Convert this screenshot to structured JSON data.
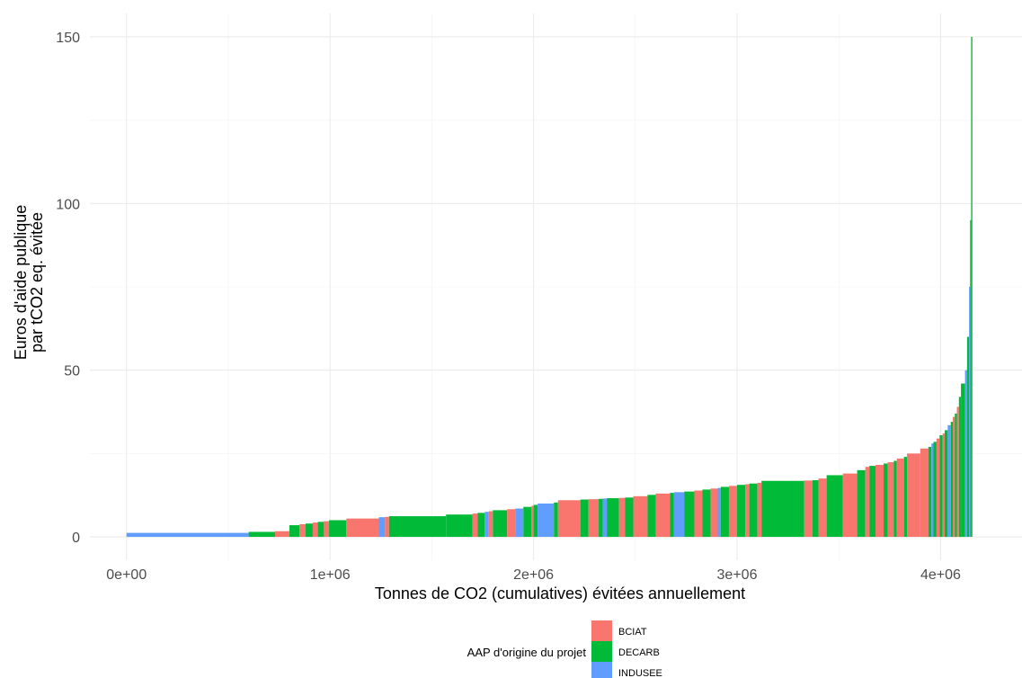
{
  "chart_data": {
    "type": "bar",
    "title": "",
    "xlabel": "Tonnes de CO2 (cumulatives) évitées annuellement",
    "ylabel_lines": [
      "Euros d'aide publique",
      "par tCO2 eq. évitée"
    ],
    "xlim": [
      -180000,
      4400000
    ],
    "ylim": [
      -7,
      157
    ],
    "x_ticks": [
      0,
      1000000,
      2000000,
      3000000,
      4000000
    ],
    "x_tick_labels": [
      "0e+00",
      "1e+06",
      "2e+06",
      "3e+06",
      "4e+06"
    ],
    "y_ticks": [
      0,
      50,
      100,
      150
    ],
    "y_tick_labels": [
      "0",
      "50",
      "100",
      "150"
    ],
    "grid": true,
    "legend": {
      "title": "AAP d'origine du projet",
      "placement": "bottom",
      "entries": [
        {
          "name": "BCIAT",
          "color": "#F8766D"
        },
        {
          "name": "DECARB",
          "color": "#00BA38"
        },
        {
          "name": "INDUSEE",
          "color": "#619CFF"
        }
      ]
    },
    "bars": [
      {
        "x0": 0,
        "x1": 600000,
        "y": 1.2,
        "group": "INDUSEE"
      },
      {
        "x0": 600000,
        "x1": 730000,
        "y": 1.5,
        "group": "DECARB"
      },
      {
        "x0": 730000,
        "x1": 800000,
        "y": 1.7,
        "group": "BCIAT"
      },
      {
        "x0": 800000,
        "x1": 850000,
        "y": 3.5,
        "group": "DECARB"
      },
      {
        "x0": 850000,
        "x1": 880000,
        "y": 3.8,
        "group": "BCIAT"
      },
      {
        "x0": 880000,
        "x1": 915000,
        "y": 4.0,
        "group": "DECARB"
      },
      {
        "x0": 915000,
        "x1": 940000,
        "y": 4.3,
        "group": "BCIAT"
      },
      {
        "x0": 940000,
        "x1": 970000,
        "y": 4.5,
        "group": "DECARB"
      },
      {
        "x0": 970000,
        "x1": 995000,
        "y": 4.7,
        "group": "BCIAT"
      },
      {
        "x0": 995000,
        "x1": 1080000,
        "y": 5.0,
        "group": "DECARB"
      },
      {
        "x0": 1080000,
        "x1": 1240000,
        "y": 5.5,
        "group": "BCIAT"
      },
      {
        "x0": 1240000,
        "x1": 1270000,
        "y": 5.9,
        "group": "INDUSEE"
      },
      {
        "x0": 1270000,
        "x1": 1290000,
        "y": 6.0,
        "group": "BCIAT"
      },
      {
        "x0": 1290000,
        "x1": 1570000,
        "y": 6.2,
        "group": "DECARB"
      },
      {
        "x0": 1570000,
        "x1": 1700000,
        "y": 6.7,
        "group": "DECARB"
      },
      {
        "x0": 1700000,
        "x1": 1725000,
        "y": 7.0,
        "group": "BCIAT"
      },
      {
        "x0": 1725000,
        "x1": 1760000,
        "y": 7.2,
        "group": "DECARB"
      },
      {
        "x0": 1760000,
        "x1": 1780000,
        "y": 7.5,
        "group": "INDUSEE"
      },
      {
        "x0": 1780000,
        "x1": 1800000,
        "y": 7.7,
        "group": "BCIAT"
      },
      {
        "x0": 1800000,
        "x1": 1870000,
        "y": 8.0,
        "group": "DECARB"
      },
      {
        "x0": 1870000,
        "x1": 1910000,
        "y": 8.3,
        "group": "BCIAT"
      },
      {
        "x0": 1910000,
        "x1": 1950000,
        "y": 8.5,
        "group": "INDUSEE"
      },
      {
        "x0": 1950000,
        "x1": 1990000,
        "y": 9.0,
        "group": "DECARB"
      },
      {
        "x0": 1990000,
        "x1": 2000000,
        "y": 9.3,
        "group": "BCIAT"
      },
      {
        "x0": 2000000,
        "x1": 2020000,
        "y": 9.6,
        "group": "DECARB"
      },
      {
        "x0": 2020000,
        "x1": 2100000,
        "y": 10.0,
        "group": "INDUSEE"
      },
      {
        "x0": 2100000,
        "x1": 2120000,
        "y": 10.3,
        "group": "DECARB"
      },
      {
        "x0": 2120000,
        "x1": 2230000,
        "y": 11.0,
        "group": "BCIAT"
      },
      {
        "x0": 2230000,
        "x1": 2270000,
        "y": 11.2,
        "group": "DECARB"
      },
      {
        "x0": 2270000,
        "x1": 2320000,
        "y": 11.3,
        "group": "BCIAT"
      },
      {
        "x0": 2320000,
        "x1": 2340000,
        "y": 11.4,
        "group": "DECARB"
      },
      {
        "x0": 2340000,
        "x1": 2360000,
        "y": 11.5,
        "group": "INDUSEE"
      },
      {
        "x0": 2360000,
        "x1": 2420000,
        "y": 11.6,
        "group": "DECARB"
      },
      {
        "x0": 2420000,
        "x1": 2450000,
        "y": 11.7,
        "group": "BCIAT"
      },
      {
        "x0": 2450000,
        "x1": 2490000,
        "y": 11.8,
        "group": "DECARB"
      },
      {
        "x0": 2490000,
        "x1": 2560000,
        "y": 12.2,
        "group": "BCIAT"
      },
      {
        "x0": 2560000,
        "x1": 2600000,
        "y": 12.6,
        "group": "DECARB"
      },
      {
        "x0": 2600000,
        "x1": 2670000,
        "y": 13.0,
        "group": "BCIAT"
      },
      {
        "x0": 2670000,
        "x1": 2690000,
        "y": 13.2,
        "group": "DECARB"
      },
      {
        "x0": 2690000,
        "x1": 2740000,
        "y": 13.4,
        "group": "INDUSEE"
      },
      {
        "x0": 2740000,
        "x1": 2790000,
        "y": 13.6,
        "group": "DECARB"
      },
      {
        "x0": 2790000,
        "x1": 2830000,
        "y": 13.9,
        "group": "BCIAT"
      },
      {
        "x0": 2830000,
        "x1": 2870000,
        "y": 14.2,
        "group": "DECARB"
      },
      {
        "x0": 2870000,
        "x1": 2905000,
        "y": 14.5,
        "group": "BCIAT"
      },
      {
        "x0": 2905000,
        "x1": 2920000,
        "y": 14.7,
        "group": "INDUSEE"
      },
      {
        "x0": 2920000,
        "x1": 2960000,
        "y": 15.0,
        "group": "DECARB"
      },
      {
        "x0": 2960000,
        "x1": 3000000,
        "y": 15.3,
        "group": "BCIAT"
      },
      {
        "x0": 3000000,
        "x1": 3040000,
        "y": 15.6,
        "group": "DECARB"
      },
      {
        "x0": 3040000,
        "x1": 3060000,
        "y": 15.8,
        "group": "BCIAT"
      },
      {
        "x0": 3060000,
        "x1": 3100000,
        "y": 16.0,
        "group": "DECARB"
      },
      {
        "x0": 3100000,
        "x1": 3120000,
        "y": 16.2,
        "group": "BCIAT"
      },
      {
        "x0": 3120000,
        "x1": 3330000,
        "y": 16.8,
        "group": "DECARB"
      },
      {
        "x0": 3330000,
        "x1": 3370000,
        "y": 16.9,
        "group": "BCIAT"
      },
      {
        "x0": 3370000,
        "x1": 3400000,
        "y": 17.0,
        "group": "DECARB"
      },
      {
        "x0": 3400000,
        "x1": 3440000,
        "y": 17.5,
        "group": "BCIAT"
      },
      {
        "x0": 3440000,
        "x1": 3520000,
        "y": 18.5,
        "group": "DECARB"
      },
      {
        "x0": 3520000,
        "x1": 3590000,
        "y": 19.0,
        "group": "BCIAT"
      },
      {
        "x0": 3590000,
        "x1": 3630000,
        "y": 20.0,
        "group": "DECARB"
      },
      {
        "x0": 3630000,
        "x1": 3650000,
        "y": 21.0,
        "group": "BCIAT"
      },
      {
        "x0": 3650000,
        "x1": 3680000,
        "y": 21.3,
        "group": "DECARB"
      },
      {
        "x0": 3680000,
        "x1": 3720000,
        "y": 21.6,
        "group": "BCIAT"
      },
      {
        "x0": 3720000,
        "x1": 3740000,
        "y": 22.0,
        "group": "DECARB"
      },
      {
        "x0": 3740000,
        "x1": 3770000,
        "y": 22.4,
        "group": "BCIAT"
      },
      {
        "x0": 3770000,
        "x1": 3785000,
        "y": 22.8,
        "group": "DECARB"
      },
      {
        "x0": 3785000,
        "x1": 3820000,
        "y": 23.5,
        "group": "BCIAT"
      },
      {
        "x0": 3820000,
        "x1": 3835000,
        "y": 24.0,
        "group": "DECARB"
      },
      {
        "x0": 3835000,
        "x1": 3900000,
        "y": 25.0,
        "group": "BCIAT"
      },
      {
        "x0": 3900000,
        "x1": 3940000,
        "y": 26.5,
        "group": "BCIAT"
      },
      {
        "x0": 3940000,
        "x1": 3955000,
        "y": 27.0,
        "group": "DECARB"
      },
      {
        "x0": 3955000,
        "x1": 3965000,
        "y": 28.0,
        "group": "INDUSEE"
      },
      {
        "x0": 3965000,
        "x1": 3980000,
        "y": 28.5,
        "group": "DECARB"
      },
      {
        "x0": 3980000,
        "x1": 3995000,
        "y": 29.5,
        "group": "BCIAT"
      },
      {
        "x0": 3995000,
        "x1": 4010000,
        "y": 30.5,
        "group": "DECARB"
      },
      {
        "x0": 4010000,
        "x1": 4020000,
        "y": 31.0,
        "group": "BCIAT"
      },
      {
        "x0": 4020000,
        "x1": 4035000,
        "y": 32.0,
        "group": "DECARB"
      },
      {
        "x0": 4035000,
        "x1": 4050000,
        "y": 33.5,
        "group": "INDUSEE"
      },
      {
        "x0": 4050000,
        "x1": 4060000,
        "y": 34.5,
        "group": "DECARB"
      },
      {
        "x0": 4060000,
        "x1": 4070000,
        "y": 36.0,
        "group": "BCIAT"
      },
      {
        "x0": 4070000,
        "x1": 4080000,
        "y": 37.0,
        "group": "DECARB"
      },
      {
        "x0": 4080000,
        "x1": 4090000,
        "y": 39.0,
        "group": "BCIAT"
      },
      {
        "x0": 4090000,
        "x1": 4100000,
        "y": 42.0,
        "group": "DECARB"
      },
      {
        "x0": 4100000,
        "x1": 4120000,
        "y": 46.0,
        "group": "DECARB"
      },
      {
        "x0": 4120000,
        "x1": 4130000,
        "y": 50.0,
        "group": "INDUSEE"
      },
      {
        "x0": 4130000,
        "x1": 4140000,
        "y": 60.0,
        "group": "DECARB"
      },
      {
        "x0": 4140000,
        "x1": 4145000,
        "y": 75.0,
        "group": "INDUSEE"
      },
      {
        "x0": 4145000,
        "x1": 4150000,
        "y": 95.0,
        "group": "DECARB"
      },
      {
        "x0": 4150000,
        "x1": 4156000,
        "y": 150.0,
        "group": "DECARB"
      }
    ]
  }
}
